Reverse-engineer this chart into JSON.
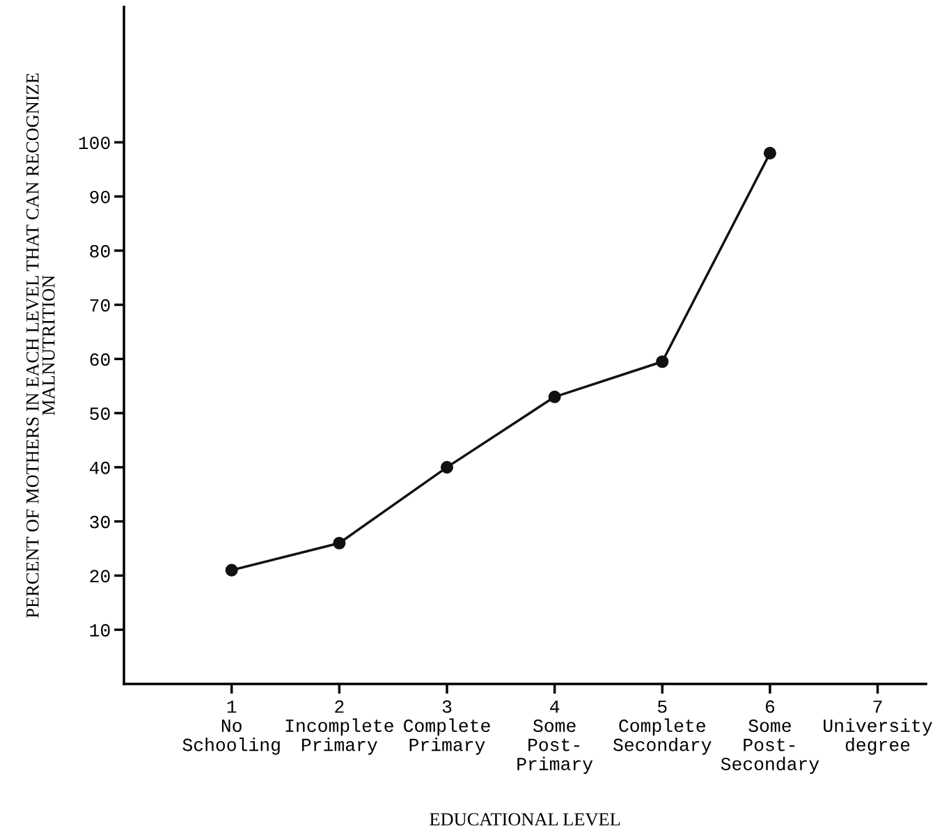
{
  "chart_data": {
    "type": "line",
    "xlabel": "EDUCATIONAL LEVEL",
    "ylabel": "PERCENT OF MOTHERS IN EACH LEVEL THAT CAN RECOGNIZE\nMALNUTRITION",
    "x": [
      1,
      2,
      3,
      4,
      5,
      6
    ],
    "series": [
      {
        "color": "#111111",
        "values": [
          21,
          26,
          40,
          53,
          59.5,
          98
        ]
      }
    ],
    "xlim": [
      0,
      7.45
    ],
    "ylim": [
      0,
      125
    ],
    "xticks": [
      {
        "value": 1,
        "label": "1\nNo\nSchooling"
      },
      {
        "value": 2,
        "label": "2\nIncomplete\nPrimary"
      },
      {
        "value": 3,
        "label": "3\nComplete\nPrimary"
      },
      {
        "value": 4,
        "label": "4\nSome\nPost-\nPrimary"
      },
      {
        "value": 5,
        "label": "5\nComplete\nSecondary"
      },
      {
        "value": 6,
        "label": "6\nSome\nPost-\nSecondary"
      },
      {
        "value": 7,
        "label": "7\nUniversity\ndegree"
      }
    ],
    "yticks": [
      10,
      20,
      30,
      40,
      50,
      60,
      70,
      80,
      90,
      100
    ],
    "grid": false,
    "legend": false,
    "marker": "circle",
    "line_style": "solid"
  }
}
